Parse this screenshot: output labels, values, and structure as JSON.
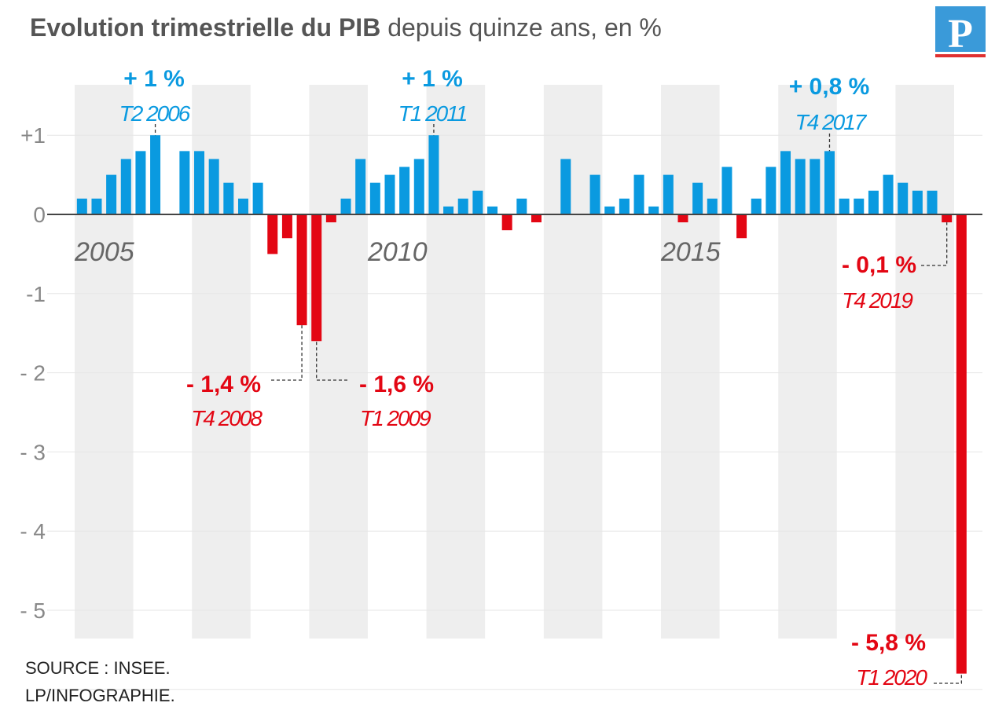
{
  "title": {
    "bold": "Evolution trimestrielle du PIB",
    "normal": " depuis quinze ans, en %"
  },
  "logo": {
    "letter": "P"
  },
  "source": {
    "line1": "SOURCE : INSEE.",
    "line2": "LP/INFOGRAPHIE."
  },
  "colors": {
    "positive": "#0a9ae0",
    "negative": "#e30613",
    "band": "#e8e8e8",
    "logo": "#3a9ad9",
    "logo_bar": "#e03030"
  },
  "chart_data": {
    "type": "bar",
    "title": "Evolution trimestrielle du PIB depuis quinze ans, en %",
    "xlabel": "",
    "ylabel": "%",
    "ylim": [
      -6,
      1.3
    ],
    "grid": true,
    "yticks": [
      {
        "v": 1,
        "label": "+1"
      },
      {
        "v": 0,
        "label": "0"
      },
      {
        "v": -1,
        "label": "-1"
      },
      {
        "v": -2,
        "label": "- 2"
      },
      {
        "v": -3,
        "label": "- 3"
      },
      {
        "v": -4,
        "label": "- 4"
      },
      {
        "v": -5,
        "label": "- 5"
      }
    ],
    "year_labels": [
      {
        "year": "2005",
        "index": 0
      },
      {
        "year": "2010",
        "index": 20
      },
      {
        "year": "2015",
        "index": 40
      }
    ],
    "start": "T1 2005",
    "values": [
      0.2,
      0.2,
      0.5,
      0.7,
      0.8,
      1.0,
      0,
      0.8,
      0.8,
      0.7,
      0.4,
      0.2,
      0.4,
      -0.5,
      -0.3,
      -1.4,
      -1.6,
      -0.1,
      0.2,
      0.7,
      0.4,
      0.5,
      0.6,
      0.7,
      1.0,
      0.1,
      0.2,
      0.3,
      0.1,
      -0.2,
      0.2,
      -0.1,
      0,
      0.7,
      0,
      0.5,
      0.1,
      0.2,
      0.5,
      0.1,
      0.5,
      -0.1,
      0.4,
      0.2,
      0.6,
      -0.3,
      0.2,
      0.6,
      0.8,
      0.7,
      0.7,
      0.8,
      0.2,
      0.2,
      0.3,
      0.5,
      0.4,
      0.3,
      0.3,
      -0.1,
      -5.8
    ],
    "annotations": [
      {
        "value": "+ 1 %",
        "period": "T2 2006",
        "index": 5
      },
      {
        "value": "+ 1 %",
        "period": "T1 2011",
        "index": 24
      },
      {
        "value": "+ 0,8 %",
        "period": "T4 2017",
        "index": 51
      },
      {
        "value": "- 0,1 %",
        "period": "T4 2019",
        "index": 59
      },
      {
        "value": "- 1,4 %",
        "period": "T4 2008",
        "index": 15
      },
      {
        "value": "- 1,6 %",
        "period": "T1 2009",
        "index": 16
      },
      {
        "value": "- 5,8 %",
        "period": "T1 2020",
        "index": 60
      }
    ]
  }
}
